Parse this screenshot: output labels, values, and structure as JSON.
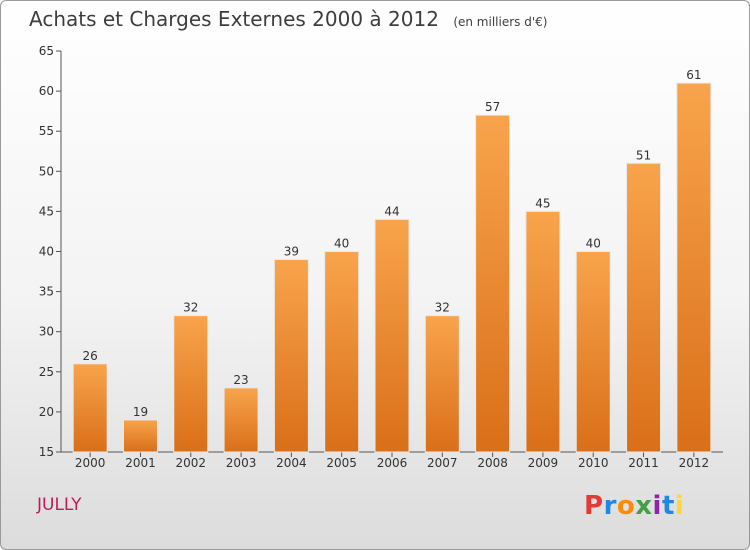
{
  "header": {
    "title": "Achats et Charges Externes 2000 à 2012",
    "subtitle": "(en milliers d'€)"
  },
  "footer": {
    "commune": "JULLY",
    "logo_text": "Proxiti"
  },
  "colors": {
    "bar_top": "#f8a44c",
    "bar_bottom": "#d96f18",
    "commune": "#c2185b",
    "logo": [
      "#e53935",
      "#1e88e5",
      "#fb8c00",
      "#43a047",
      "#8e24aa",
      "#1e88e5",
      "#fdd835"
    ]
  },
  "chart_data": {
    "type": "bar",
    "title": "Achats et Charges Externes 2000 à 2012",
    "subtitle": "(en milliers d'€)",
    "categories": [
      "2000",
      "2001",
      "2002",
      "2003",
      "2004",
      "2005",
      "2006",
      "2007",
      "2008",
      "2009",
      "2010",
      "2011",
      "2012"
    ],
    "values": [
      26,
      19,
      32,
      23,
      39,
      40,
      44,
      32,
      57,
      45,
      40,
      51,
      61
    ],
    "ylim": [
      15,
      65
    ],
    "yticks": [
      15,
      20,
      25,
      30,
      35,
      40,
      45,
      50,
      55,
      60,
      65
    ],
    "grid": false,
    "xlabel": "",
    "ylabel": ""
  }
}
